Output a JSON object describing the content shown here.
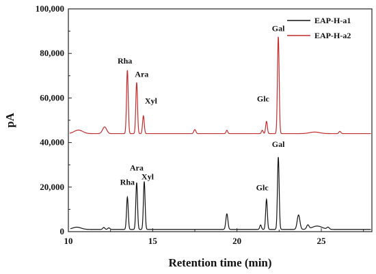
{
  "chart_data": {
    "type": "line",
    "xlabel": "Retention time (min)",
    "ylabel": "pA",
    "xlim": [
      10,
      28
    ],
    "ylim": [
      0,
      100000
    ],
    "x_ticks": [
      10,
      15,
      20,
      25
    ],
    "y_ticks": [
      0,
      20000,
      40000,
      60000,
      80000,
      100000
    ],
    "y_tick_labels": [
      "0",
      "20,000",
      "40,000",
      "60,000",
      "80,000",
      "100,000"
    ],
    "grid": false,
    "legend_position": "top-right",
    "series": [
      {
        "name": "EAP-H-a1",
        "color": "#111111",
        "baseline": 1000,
        "peaks": [
          {
            "x": 10.5,
            "height": 1000,
            "width": 0.25
          },
          {
            "x": 12.1,
            "height": 900,
            "width": 0.06
          },
          {
            "x": 12.4,
            "height": 700,
            "width": 0.06
          },
          {
            "x": 13.5,
            "height": 14500,
            "width": 0.05
          },
          {
            "x": 14.05,
            "height": 21000,
            "width": 0.05
          },
          {
            "x": 14.5,
            "height": 21500,
            "width": 0.05
          },
          {
            "x": 19.4,
            "height": 7000,
            "width": 0.06
          },
          {
            "x": 21.4,
            "height": 2000,
            "width": 0.05
          },
          {
            "x": 21.75,
            "height": 13500,
            "width": 0.05
          },
          {
            "x": 22.45,
            "height": 32500,
            "width": 0.05
          },
          {
            "x": 23.65,
            "height": 6500,
            "width": 0.08
          },
          {
            "x": 24.2,
            "height": 1800,
            "width": 0.07
          },
          {
            "x": 24.75,
            "height": 1500,
            "width": 0.3
          },
          {
            "x": 25.4,
            "height": 900,
            "width": 0.07
          }
        ],
        "labels": [
          {
            "text": "Rha",
            "x": 13.5,
            "y": 21000
          },
          {
            "text": "Ara",
            "x": 14.05,
            "y": 27500
          },
          {
            "text": "Xyl",
            "x": 14.7,
            "y": 23500
          },
          {
            "text": "Glc",
            "x": 21.5,
            "y": 18500
          },
          {
            "text": "Gal",
            "x": 22.45,
            "y": 38000
          }
        ]
      },
      {
        "name": "EAP-H-a2",
        "color": "#c42a2a",
        "baseline": 44000,
        "peaks": [
          {
            "x": 10.6,
            "height": 1600,
            "width": 0.25
          },
          {
            "x": 12.15,
            "height": 3000,
            "width": 0.12
          },
          {
            "x": 13.5,
            "height": 28500,
            "width": 0.05
          },
          {
            "x": 14.05,
            "height": 23000,
            "width": 0.05
          },
          {
            "x": 14.45,
            "height": 8000,
            "width": 0.05
          },
          {
            "x": 17.5,
            "height": 1800,
            "width": 0.06
          },
          {
            "x": 19.4,
            "height": 1500,
            "width": 0.05
          },
          {
            "x": 21.5,
            "height": 1500,
            "width": 0.05
          },
          {
            "x": 21.75,
            "height": 5500,
            "width": 0.05
          },
          {
            "x": 22.45,
            "height": 43500,
            "width": 0.05
          },
          {
            "x": 24.6,
            "height": 700,
            "width": 0.3
          },
          {
            "x": 26.1,
            "height": 1000,
            "width": 0.06
          }
        ],
        "labels": [
          {
            "text": "Rha",
            "x": 13.35,
            "y": 75500
          },
          {
            "text": "Ara",
            "x": 14.35,
            "y": 69500
          },
          {
            "text": "Xyl",
            "x": 14.9,
            "y": 57500
          },
          {
            "text": "Glc",
            "x": 21.55,
            "y": 58500
          },
          {
            "text": "Gal",
            "x": 22.45,
            "y": 90000
          }
        ]
      }
    ]
  }
}
